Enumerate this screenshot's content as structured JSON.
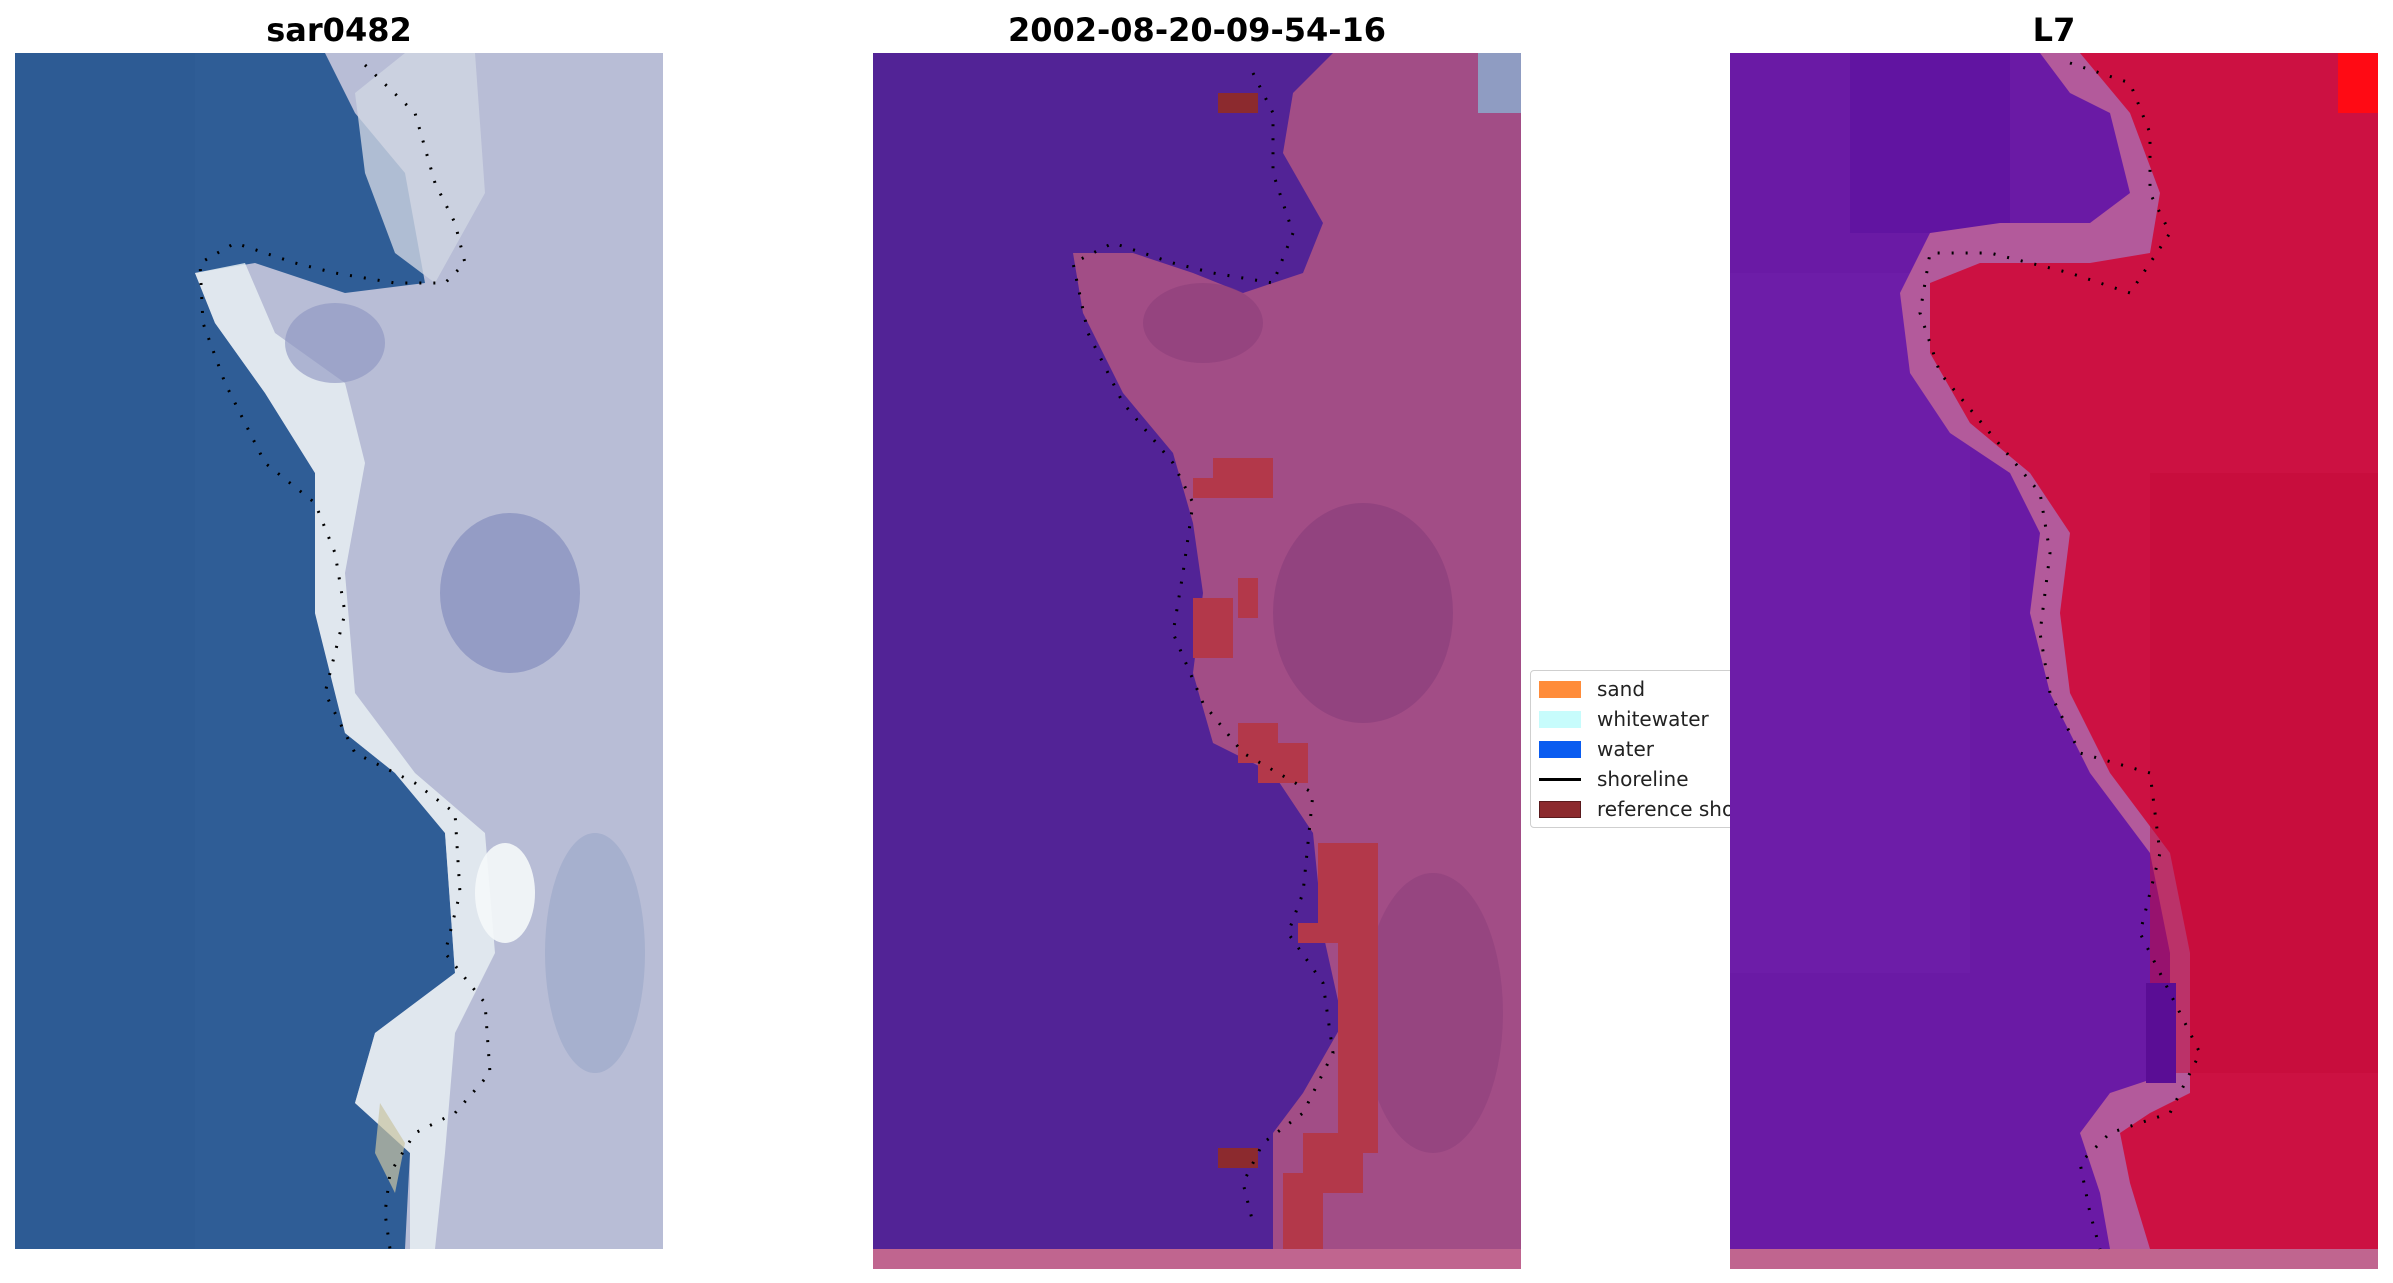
{
  "panels": [
    {
      "title": "sar0482",
      "kind": "rgb"
    },
    {
      "title": "2002-08-20-09-54-16",
      "kind": "classified"
    },
    {
      "title": "L7",
      "kind": "mndwi"
    }
  ],
  "legend": {
    "items": [
      {
        "label": "sand",
        "color": "#ff8c3a",
        "type": "patch"
      },
      {
        "label": "whitewater",
        "color": "#c7fcfc",
        "type": "patch"
      },
      {
        "label": "water",
        "color": "#0a5cf0",
        "type": "patch"
      },
      {
        "label": "shoreline",
        "color": "#000000",
        "type": "line"
      },
      {
        "label": "reference shoreline",
        "color": "#8c2a2e",
        "type": "patch"
      }
    ]
  },
  "colors": {
    "ocean_rgb": "#2f5d96",
    "land_rgb": "#b8bdd6",
    "whitewash_rgb": "#e6eef2",
    "water_class": "#522396",
    "land_class": "#a24d86",
    "ref_class": "#b3384a",
    "water_index": "#6a1aa5",
    "land_index": "#cc1142",
    "transition_index": "#b35a9b"
  }
}
